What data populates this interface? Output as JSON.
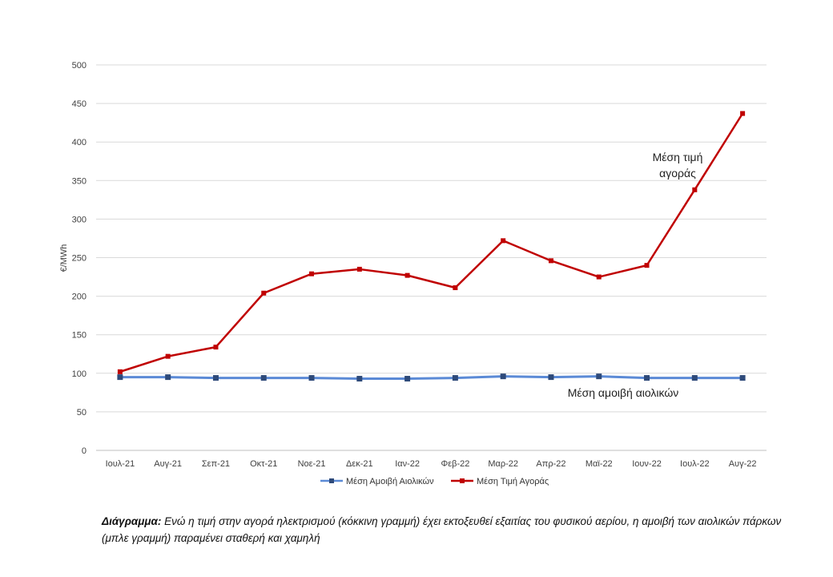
{
  "chart_data": {
    "type": "line",
    "categories": [
      "Ιουλ-21",
      "Αυγ-21",
      "Σεπ-21",
      "Οκτ-21",
      "Νοε-21",
      "Δεκ-21",
      "Ιαν-22",
      "Φεβ-22",
      "Μαρ-22",
      "Απρ-22",
      "Μαϊ-22",
      "Ιουν-22",
      "Ιουλ-22",
      "Αυγ-22"
    ],
    "series": [
      {
        "name": "Μέση Αμοιβή Αιολικών",
        "color": "#2e4a7a",
        "line_color": "#5b8ad6",
        "marker": "square",
        "values": [
          95,
          95,
          94,
          94,
          94,
          93,
          93,
          94,
          96,
          95,
          96,
          94,
          94,
          94
        ]
      },
      {
        "name": "Μέση Τιμή Αγοράς",
        "color": "#c00000",
        "line_color": "#c00000",
        "marker": "square",
        "values": [
          102,
          122,
          134,
          204,
          229,
          235,
          227,
          211,
          272,
          246,
          225,
          240,
          338,
          437
        ]
      }
    ],
    "ylabel": "€/MWh",
    "ylim": [
      0,
      500
    ],
    "yticks": [
      "0",
      "50",
      "100",
      "150",
      "200",
      "250",
      "300",
      "350",
      "400",
      "450",
      "500"
    ],
    "annotations": {
      "market_line1": "Μέση τιμή",
      "market_line2": "αγοράς",
      "wind": "Μέση αμοιβή αιολικών"
    },
    "legend_position": "bottom"
  },
  "caption": {
    "label": "Διάγραμμα:",
    "text": " Ενώ η τιμή στην αγορά ηλεκτρισμού (κόκκινη γραμμή) έχει εκτοξευθεί εξαιτίας του φυσικού αερίου, η αμοιβή των αιολικών πάρκων (μπλε γραμμή) παραμένει σταθερή και χαμηλή"
  }
}
